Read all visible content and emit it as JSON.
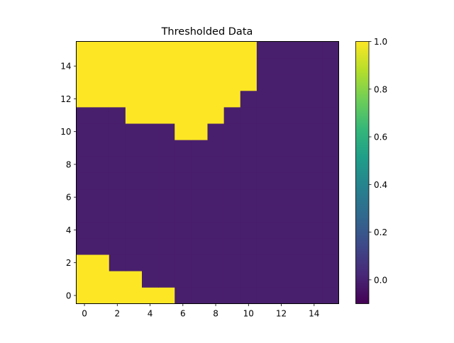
{
  "chart_data": {
    "type": "heatmap",
    "title": "Thresholded Data",
    "xlabel": "",
    "ylabel": "",
    "origin": "lower",
    "xlim": [
      -0.5,
      15.5
    ],
    "ylim": [
      -0.5,
      15.5
    ],
    "x_ticks": [
      0,
      2,
      4,
      6,
      8,
      10,
      12,
      14
    ],
    "y_ticks": [
      0,
      2,
      4,
      6,
      8,
      10,
      12,
      14
    ],
    "x_tick_labels": [
      "0",
      "2",
      "4",
      "6",
      "8",
      "10",
      "12",
      "14"
    ],
    "y_tick_labels": [
      "0",
      "2",
      "4",
      "6",
      "8",
      "10",
      "12",
      "14"
    ],
    "colormap": "viridis",
    "color_low": "#440154",
    "color_high": "#fde725",
    "value_zero_color": "#481f6d",
    "value_one_color": "#fde725",
    "colorbar": {
      "vmin": -0.1,
      "vmax": 1.0,
      "ticks": [
        0.0,
        0.2,
        0.4,
        0.6,
        0.8,
        1.0
      ],
      "tick_labels": [
        "0.0",
        "0.2",
        "0.4",
        "0.6",
        "0.8",
        "1.0"
      ]
    },
    "rows_bottom_to_top": [
      [
        1,
        1,
        1,
        1,
        1,
        1,
        0,
        0,
        0,
        0,
        0,
        0,
        0,
        0,
        0,
        0
      ],
      [
        1,
        1,
        1,
        1,
        0,
        0,
        0,
        0,
        0,
        0,
        0,
        0,
        0,
        0,
        0,
        0
      ],
      [
        1,
        1,
        0,
        0,
        0,
        0,
        0,
        0,
        0,
        0,
        0,
        0,
        0,
        0,
        0,
        0
      ],
      [
        0,
        0,
        0,
        0,
        0,
        0,
        0,
        0,
        0,
        0,
        0,
        0,
        0,
        0,
        0,
        0
      ],
      [
        0,
        0,
        0,
        0,
        0,
        0,
        0,
        0,
        0,
        0,
        0,
        0,
        0,
        0,
        0,
        0
      ],
      [
        0,
        0,
        0,
        0,
        0,
        0,
        0,
        0,
        0,
        0,
        0,
        0,
        0,
        0,
        0,
        0
      ],
      [
        0,
        0,
        0,
        0,
        0,
        0,
        0,
        0,
        0,
        0,
        0,
        0,
        0,
        0,
        0,
        0
      ],
      [
        0,
        0,
        0,
        0,
        0,
        0,
        0,
        0,
        0,
        0,
        0,
        0,
        0,
        0,
        0,
        0
      ],
      [
        0,
        0,
        0,
        0,
        0,
        0,
        0,
        0,
        0,
        0,
        0,
        0,
        0,
        0,
        0,
        0
      ],
      [
        0,
        0,
        0,
        0,
        0,
        0,
        0,
        0,
        0,
        0,
        0,
        0,
        0,
        0,
        0,
        0
      ],
      [
        0,
        0,
        0,
        0,
        0,
        0,
        1,
        1,
        0,
        0,
        0,
        0,
        0,
        0,
        0,
        0
      ],
      [
        0,
        0,
        0,
        1,
        1,
        1,
        1,
        1,
        1,
        0,
        0,
        0,
        0,
        0,
        0,
        0
      ],
      [
        1,
        1,
        1,
        1,
        1,
        1,
        1,
        1,
        1,
        1,
        0,
        0,
        0,
        0,
        0,
        0
      ],
      [
        1,
        1,
        1,
        1,
        1,
        1,
        1,
        1,
        1,
        1,
        1,
        0,
        0,
        0,
        0,
        0
      ],
      [
        1,
        1,
        1,
        1,
        1,
        1,
        1,
        1,
        1,
        1,
        1,
        0,
        0,
        0,
        0,
        0
      ],
      [
        1,
        1,
        1,
        1,
        1,
        1,
        1,
        1,
        1,
        1,
        1,
        0,
        0,
        0,
        0,
        0
      ]
    ]
  }
}
